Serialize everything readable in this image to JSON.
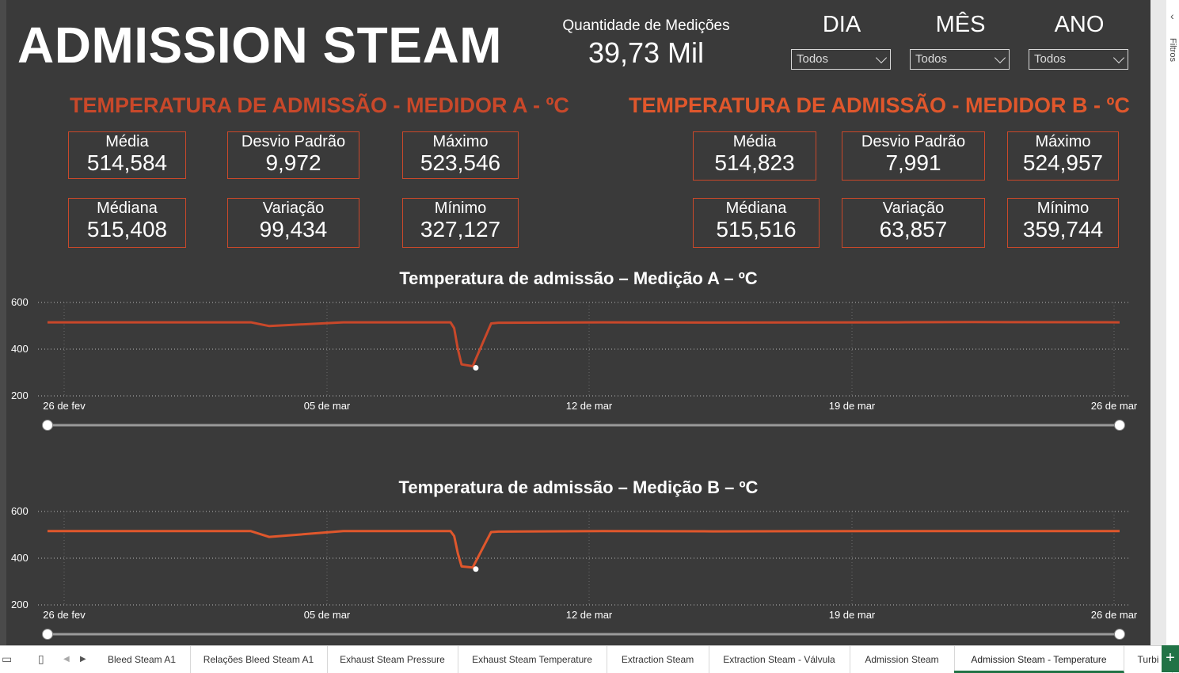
{
  "report_title": "ADMISSION STEAM",
  "measurements": {
    "label": "Quantidade de Medições",
    "value": "39,73 Mil"
  },
  "slicers": [
    {
      "title": "DIA",
      "value": "Todos"
    },
    {
      "title": "MÊS",
      "value": "Todos"
    },
    {
      "title": "ANO",
      "value": "Todos"
    }
  ],
  "filters_pane_label": "Filtros",
  "meter_a": {
    "title": "TEMPERATURA DE ADMISSÃO - MEDIDOR A - ºC",
    "color": "#c9482a",
    "cards": [
      {
        "label": "Média",
        "value": "514,584"
      },
      {
        "label": "Desvio Padrão",
        "value": "9,972"
      },
      {
        "label": "Máximo",
        "value": "523,546"
      },
      {
        "label": "Médiana",
        "value": "515,408"
      },
      {
        "label": "Variação",
        "value": "99,434"
      },
      {
        "label": "Mínimo",
        "value": "327,127"
      }
    ]
  },
  "meter_b": {
    "title": "TEMPERATURA DE ADMISSÃO - MEDIDOR B - ºC",
    "color": "#e0572c",
    "cards": [
      {
        "label": "Média",
        "value": "514,823"
      },
      {
        "label": "Desvio Padrão",
        "value": "7,991"
      },
      {
        "label": "Máximo",
        "value": "524,957"
      },
      {
        "label": "Médiana",
        "value": "515,516"
      },
      {
        "label": "Variação",
        "value": "63,857"
      },
      {
        "label": "Mínimo",
        "value": "359,744"
      }
    ]
  },
  "chart_data": [
    {
      "type": "line",
      "title": "Temperatura de admissão – Medição A – ºC",
      "ylim": [
        200,
        600
      ],
      "yticks": [
        "600",
        "400",
        "200"
      ],
      "xticks": [
        "26 de fev",
        "05 de mar",
        "12 de mar",
        "19 de mar",
        "26 de mar"
      ],
      "color": "#c9482a",
      "x": [
        0,
        5.5,
        6,
        8,
        10.9,
        11.0,
        11.1,
        11.2,
        11.5,
        12.0,
        12.2,
        15,
        18,
        23,
        25,
        29
      ],
      "values": [
        515,
        515,
        499,
        515,
        515,
        490,
        400,
        335,
        327,
        510,
        513,
        515,
        514,
        515,
        516,
        515
      ],
      "grid": true
    },
    {
      "type": "line",
      "title": "Temperatura de admissão – Medição B – ºC",
      "ylim": [
        200,
        600
      ],
      "yticks": [
        "600",
        "400",
        "200"
      ],
      "xticks": [
        "26 de fev",
        "05 de mar",
        "12 de mar",
        "19 de mar",
        "26 de mar"
      ],
      "color": "#e0572c",
      "x": [
        0,
        5.5,
        6,
        8,
        10.9,
        11.0,
        11.1,
        11.2,
        11.5,
        12.0,
        12.2,
        15,
        18,
        23,
        25,
        29
      ],
      "values": [
        516,
        516,
        491,
        516,
        516,
        495,
        420,
        365,
        360,
        512,
        514,
        516,
        515,
        516,
        516,
        516
      ],
      "grid": true
    }
  ],
  "tabs": [
    {
      "label": "Bleed Steam A1"
    },
    {
      "label": "Relações Bleed Steam A1"
    },
    {
      "label": "Exhaust Steam Pressure"
    },
    {
      "label": "Exhaust Steam Temperature"
    },
    {
      "label": "Extraction Steam"
    },
    {
      "label": "Extraction Steam - Válvula"
    },
    {
      "label": "Admission Steam"
    },
    {
      "label": "Admission Steam - Temperature"
    },
    {
      "label": "Turbi"
    }
  ],
  "active_tab_index": 7
}
